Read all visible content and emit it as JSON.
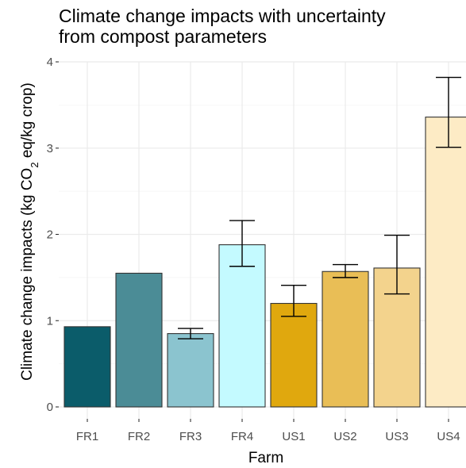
{
  "chart_data": {
    "type": "bar",
    "title_lines": [
      "Climate change impacts with uncertainty",
      "from compost parameters"
    ],
    "xlabel": "Farm",
    "ylabel_parts": [
      "Climate change impacts (kg CO",
      "2",
      " eq/kg crop)"
    ],
    "categories": [
      "FR1",
      "FR2",
      "FR3",
      "FR4",
      "US1",
      "US2",
      "US3",
      "US4"
    ],
    "values": [
      0.93,
      1.55,
      0.85,
      1.88,
      1.2,
      1.57,
      1.61,
      3.36
    ],
    "error_low": [
      null,
      null,
      0.79,
      1.63,
      1.05,
      1.5,
      1.31,
      3.01
    ],
    "error_high": [
      null,
      null,
      0.91,
      2.16,
      1.41,
      1.65,
      1.99,
      3.82
    ],
    "colors": [
      "#0b5c6a",
      "#4b8c96",
      "#8bc4cf",
      "#c4faff",
      "#e0a80e",
      "#e9be56",
      "#f3d38d",
      "#fdebc5"
    ],
    "ylim": [
      0,
      4
    ],
    "yticks": [
      "0",
      "1",
      "2",
      "3",
      "4"
    ],
    "grid": true,
    "legend": "none"
  }
}
